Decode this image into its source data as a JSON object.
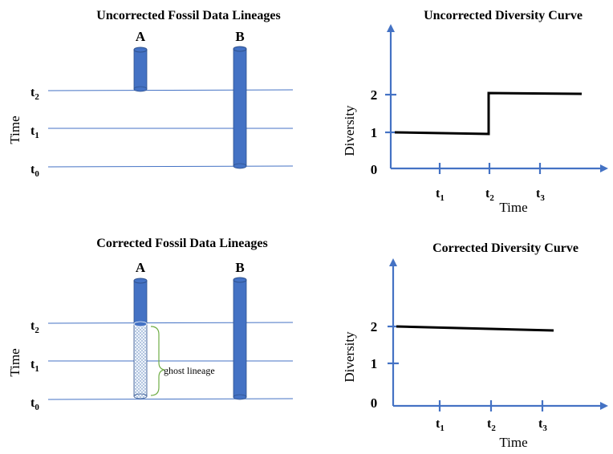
{
  "panels": {
    "uncorrected_lineages": {
      "title": "Uncorrected Fossil Data Lineages",
      "time_axis_label": "Time",
      "lineages": [
        {
          "label": "A"
        },
        {
          "label": "B"
        }
      ],
      "time_lines": [
        {
          "main": "t",
          "sub": "2"
        },
        {
          "main": "t",
          "sub": "1"
        },
        {
          "main": "t",
          "sub": "0"
        }
      ]
    },
    "uncorrected_curve": {
      "title": "Uncorrected Diversity Curve",
      "y_axis_label": "Diversity",
      "x_axis_label": "Time",
      "y_ticks": [
        "2",
        "1",
        "0"
      ],
      "x_ticks": [
        {
          "main": "t",
          "sub": "1"
        },
        {
          "main": "t",
          "sub": "2"
        },
        {
          "main": "t",
          "sub": "3"
        }
      ]
    },
    "corrected_lineages": {
      "title": "Corrected Fossil Data Lineages",
      "time_axis_label": "Time",
      "lineages": [
        {
          "label": "A"
        },
        {
          "label": "B"
        }
      ],
      "time_lines": [
        {
          "main": "t",
          "sub": "2"
        },
        {
          "main": "t",
          "sub": "1"
        },
        {
          "main": "t",
          "sub": "0"
        }
      ],
      "ghost_label": "ghost lineage"
    },
    "corrected_curve": {
      "title": "Corrected Diversity Curve",
      "y_axis_label": "Diversity",
      "x_axis_label": "Time",
      "y_ticks": [
        "2",
        "1",
        "0"
      ],
      "x_ticks": [
        {
          "main": "t",
          "sub": "1"
        },
        {
          "main": "t",
          "sub": "2"
        },
        {
          "main": "t",
          "sub": "3"
        }
      ]
    }
  },
  "colors": {
    "pillar": "#4472c4",
    "pillar_dark": "#2f528f",
    "axis": "#4472c4",
    "time_line": "#4472c4",
    "curve": "#000000",
    "ghost_bracket": "#70ad47"
  }
}
